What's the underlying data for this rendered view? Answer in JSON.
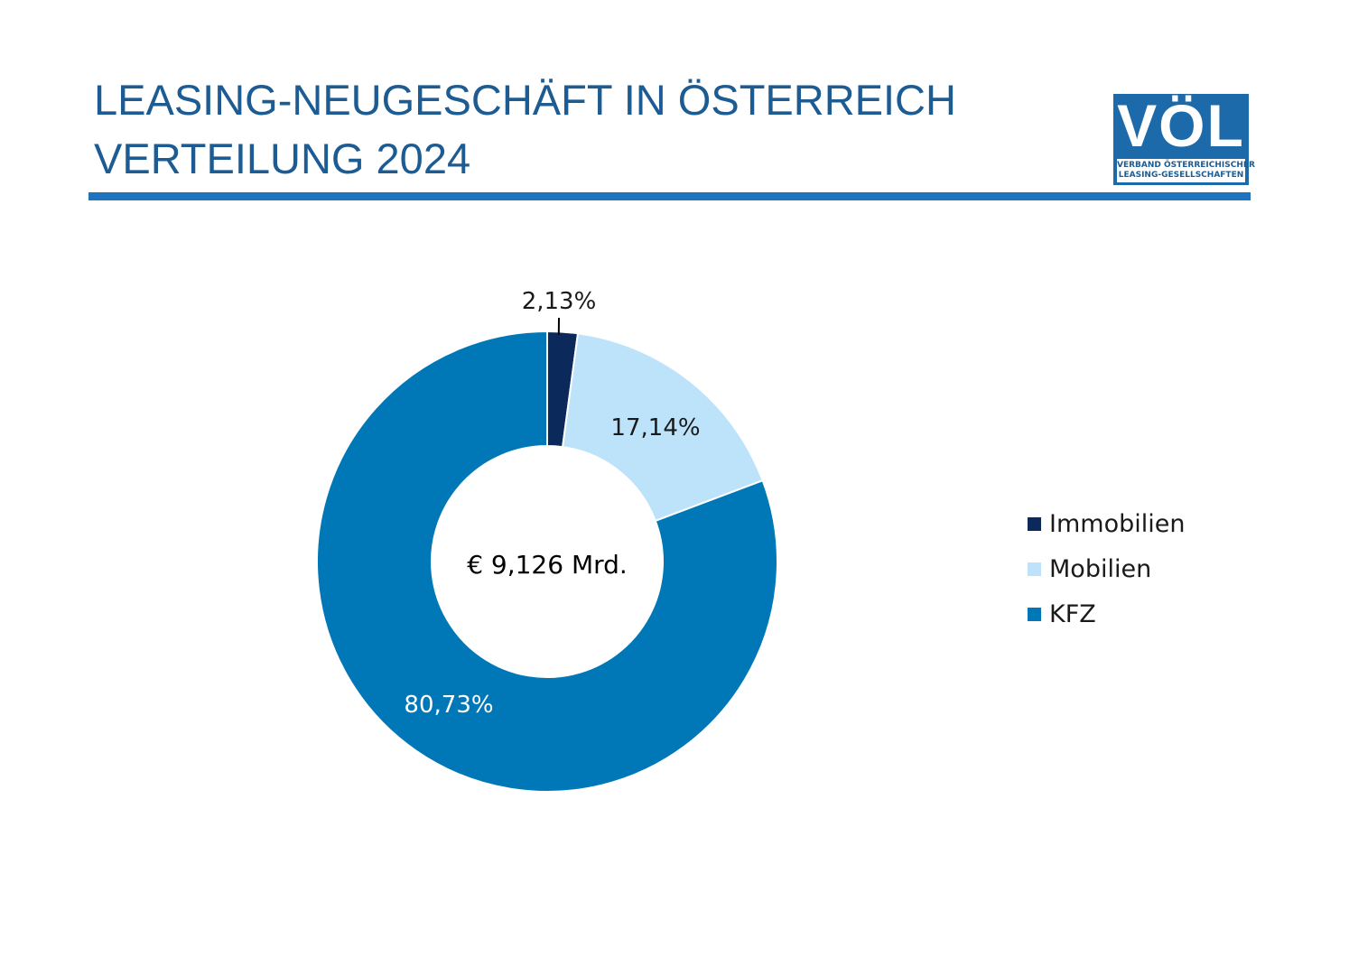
{
  "header": {
    "title_line1": "LEASING-NEUGESCHÄFT IN ÖSTERREICH",
    "title_line2": "VERTEILUNG 2024"
  },
  "logo": {
    "word": "VÖL",
    "sub_line1": "VERBAND ÖSTERREICHISCHER",
    "sub_line2": "LEASING-GESELLSCHAFTEN"
  },
  "chart_data": {
    "type": "pie",
    "title": "",
    "donut": true,
    "center_label": "€ 9,126 Mrd.",
    "legend_position": "right",
    "slices": [
      {
        "name": "Immobilien",
        "value": 2.13,
        "label": "2,13%",
        "color": "#0b2a5b"
      },
      {
        "name": "Mobilien",
        "value": 17.14,
        "label": "17,14%",
        "color": "#bde3fb"
      },
      {
        "name": "KFZ",
        "value": 80.73,
        "label": "80,73%",
        "color": "#0077b6"
      }
    ]
  }
}
